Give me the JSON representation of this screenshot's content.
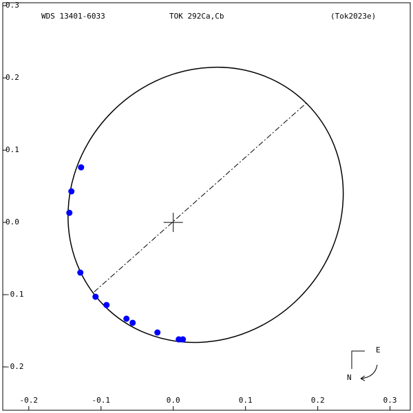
{
  "chart_data": {
    "type": "scatter",
    "title": "WDS 13401-6033",
    "subtitle": "TOK 292Ca,Cb",
    "reference": "(Tok2023e)",
    "xlim": [
      -0.236,
      0.328
    ],
    "ylim": [
      -0.26,
      0.304
    ],
    "xticks": [
      -0.2,
      -0.1,
      {
        "value": 0,
        "label": "0.0"
      },
      0.1,
      0.2,
      0.3
    ],
    "yticks": [
      -0.2,
      -0.1,
      {
        "value": 0,
        "label": "0.0"
      },
      0.1,
      0.2,
      0.3
    ],
    "series": [
      {
        "color": "#0000ff",
        "x": [
          -0.1276,
          -0.141,
          -0.1438,
          -0.1286,
          -0.1076,
          -0.0924,
          -0.0648,
          -0.0562,
          -0.0219,
          0.0076,
          0.0133
        ],
        "values": [
          0.0762,
          0.0429,
          0.0133,
          -0.0695,
          -0.1029,
          -0.1143,
          -0.1333,
          -0.139,
          -0.1524,
          -0.1619,
          -0.1619
        ]
      }
    ],
    "orbit": {
      "center": [
        0.0448,
        0.0243
      ],
      "semi_axes": [
        0.198,
        0.1826
      ],
      "angle": 45,
      "color": "#000000"
    },
    "node_line": {
      "x": [
        -0.1095,
        0.184
      ],
      "y": [
        -0.0962,
        0.165
      ]
    },
    "compass": {
      "east": "E",
      "north": "N"
    }
  }
}
